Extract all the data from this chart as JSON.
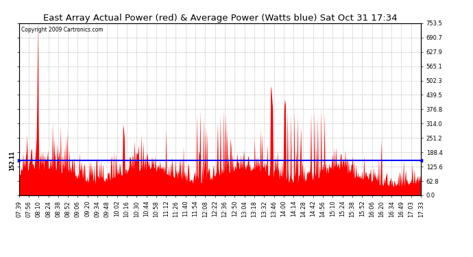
{
  "title": "East Array Actual Power (red) & Average Power (Watts blue) Sat Oct 31 17:34",
  "copyright_text": "Copyright 2009 Cartronics.com",
  "average_line": 152.11,
  "ymax": 753.5,
  "yticks_right": [
    0.0,
    62.8,
    125.6,
    188.4,
    251.2,
    314.0,
    376.8,
    439.5,
    502.3,
    565.1,
    627.9,
    690.7,
    753.5
  ],
  "ytick_labels_right": [
    "0.0",
    "62.8",
    "125.6",
    "188.4",
    "251.2",
    "314.0",
    "376.8",
    "439.5",
    "502.3",
    "565.1",
    "627.9",
    "690.7",
    "753.5"
  ],
  "xtick_labels": [
    "07:39",
    "07:56",
    "08:10",
    "08:24",
    "08:38",
    "08:52",
    "09:06",
    "09:20",
    "09:34",
    "09:48",
    "10:02",
    "10:16",
    "10:30",
    "10:44",
    "10:58",
    "11:12",
    "11:26",
    "11:40",
    "11:54",
    "12:08",
    "12:22",
    "12:36",
    "12:50",
    "13:04",
    "13:18",
    "13:32",
    "13:46",
    "14:00",
    "14:14",
    "14:28",
    "14:42",
    "14:56",
    "15:10",
    "15:24",
    "15:38",
    "15:52",
    "16:06",
    "16:20",
    "16:34",
    "16:49",
    "17:03",
    "17:33"
  ],
  "bar_color": "#ff0000",
  "line_color": "#0000ff",
  "background_color": "#ffffff",
  "grid_color": "#b0b0b0",
  "title_fontsize": 9.5,
  "avg_label": "152.11",
  "copyright_fontsize": 5.5,
  "tick_fontsize": 6,
  "xlabel_fontsize": 6
}
